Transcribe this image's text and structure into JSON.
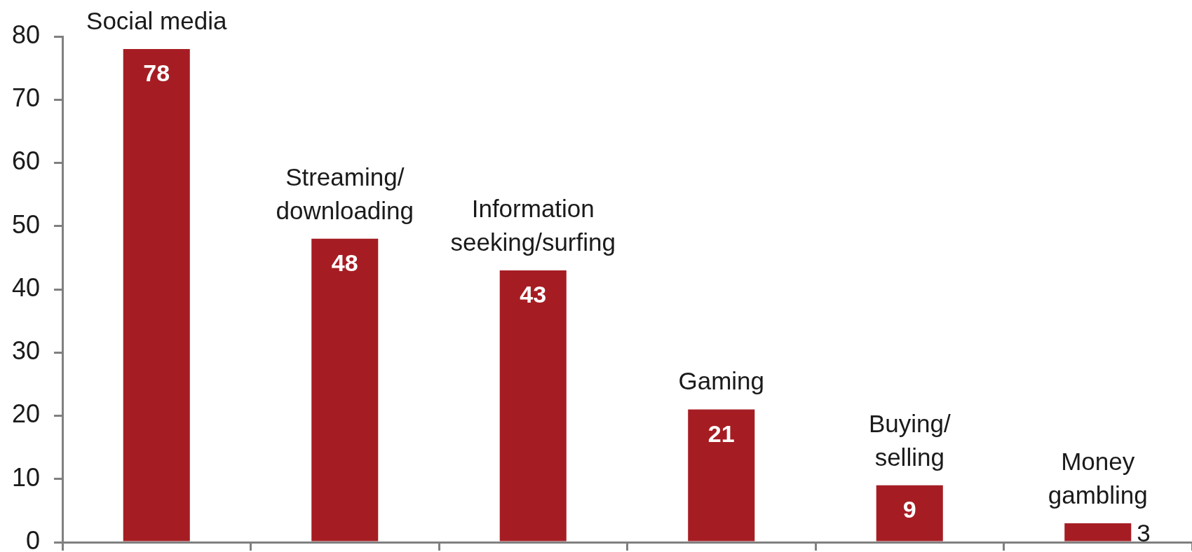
{
  "chart_data": {
    "type": "bar",
    "categories": [
      "Social media",
      "Streaming/\ndownloading",
      "Information\nseeking/surfing",
      "Gaming",
      "Buying/\nselling",
      "Money\ngambling"
    ],
    "values": [
      78,
      48,
      43,
      21,
      9,
      3
    ],
    "color": "#a51d23",
    "ylim": [
      0,
      80
    ],
    "yticks": [
      0,
      10,
      20,
      30,
      40,
      50,
      60,
      70,
      80
    ],
    "data_labels": true
  }
}
